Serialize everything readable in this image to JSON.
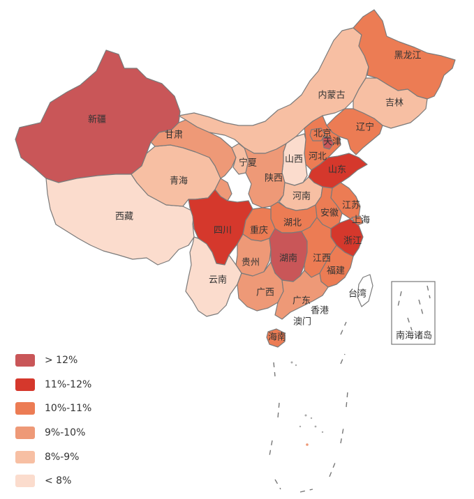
{
  "colors": {
    "c1": "#c95658",
    "c2": "#d5382c",
    "c3": "#ec7c54",
    "c4": "#ee9977",
    "c5": "#f7bfa3",
    "c6": "#fbdccd",
    "border": "#7a7a7a"
  },
  "legend": [
    {
      "label": "> 12%",
      "color": "#c95658"
    },
    {
      "label": "11%-12%",
      "color": "#d5382c"
    },
    {
      "label": "10%-11%",
      "color": "#ec7c54"
    },
    {
      "label": "9%-10%",
      "color": "#ee9977"
    },
    {
      "label": "8%-9%",
      "color": "#f7bfa3"
    },
    {
      "label": "< 8%",
      "color": "#fbdccd"
    }
  ],
  "regions": [
    {
      "id": "xinjiang",
      "name": "新疆",
      "class": "> 12%"
    },
    {
      "id": "xizang",
      "name": "西藏",
      "class": "< 8%"
    },
    {
      "id": "qinghai",
      "name": "青海",
      "class": "8%-9%"
    },
    {
      "id": "gansu",
      "name": "甘肃",
      "class": "9%-10%"
    },
    {
      "id": "neimenggu",
      "name": "内蒙古",
      "class": "8%-9%"
    },
    {
      "id": "heilongjiang",
      "name": "黑龙江",
      "class": "10%-11%"
    },
    {
      "id": "jilin",
      "name": "吉林",
      "class": "8%-9%"
    },
    {
      "id": "liaoning",
      "name": "辽宁",
      "class": "10%-11%"
    },
    {
      "id": "beijing",
      "name": "北京",
      "class": "10%-11%"
    },
    {
      "id": "tianjin",
      "name": "天津",
      "class": "> 12%"
    },
    {
      "id": "hebei",
      "name": "河北",
      "class": "10%-11%"
    },
    {
      "id": "shanxi",
      "name": "山西",
      "class": "< 8%"
    },
    {
      "id": "ningxia",
      "name": "宁夏",
      "class": "8%-9%"
    },
    {
      "id": "shaanxi",
      "name": "陕西",
      "class": "9%-10%"
    },
    {
      "id": "shandong",
      "name": "山东",
      "class": "11%-12%"
    },
    {
      "id": "henan",
      "name": "河南",
      "class": "8%-9%"
    },
    {
      "id": "jiangsu",
      "name": "江苏",
      "class": "10%-11%"
    },
    {
      "id": "anhui",
      "name": "安徽",
      "class": "10%-11%"
    },
    {
      "id": "shanghai",
      "name": "上海",
      "class": "10%-11%"
    },
    {
      "id": "zhejiang",
      "name": "浙江",
      "class": "11%-12%"
    },
    {
      "id": "hubei",
      "name": "湖北",
      "class": "10%-11%"
    },
    {
      "id": "sichuan",
      "name": "四川",
      "class": "11%-12%"
    },
    {
      "id": "chongqing",
      "name": "重庆",
      "class": "10%-11%"
    },
    {
      "id": "guizhou",
      "name": "贵州",
      "class": "9%-10%"
    },
    {
      "id": "hunan",
      "name": "湖南",
      "class": "> 12%"
    },
    {
      "id": "jiangxi",
      "name": "江西",
      "class": "10%-11%"
    },
    {
      "id": "fujian",
      "name": "福建",
      "class": "10%-11%"
    },
    {
      "id": "yunnan",
      "name": "云南",
      "class": "< 8%"
    },
    {
      "id": "guangxi",
      "name": "广西",
      "class": "9%-10%"
    },
    {
      "id": "guangdong",
      "name": "广东",
      "class": "9%-10%"
    },
    {
      "id": "hongkong",
      "name": "香港",
      "class": ""
    },
    {
      "id": "macau",
      "name": "澳门",
      "class": ""
    },
    {
      "id": "hainan",
      "name": "海南",
      "class": "10%-11%"
    },
    {
      "id": "taiwan",
      "name": "台湾",
      "class": ""
    },
    {
      "id": "nanhai",
      "name": "南海诸岛",
      "class": ""
    }
  ]
}
